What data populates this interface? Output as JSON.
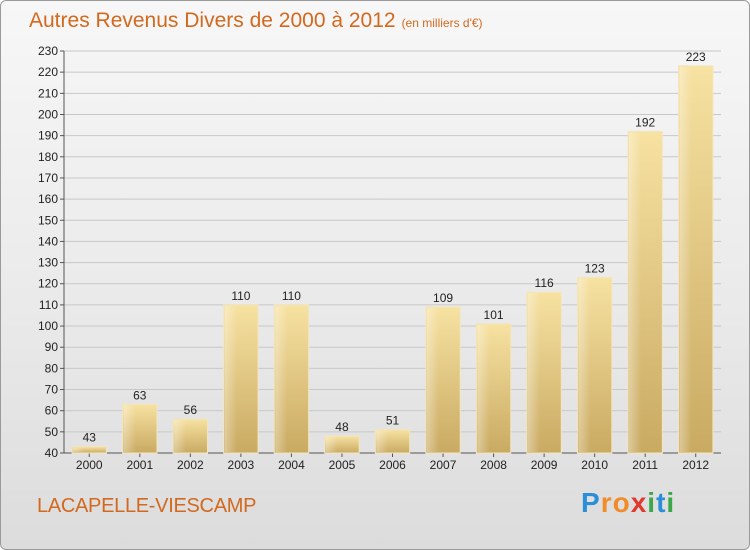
{
  "chart_data": {
    "type": "bar",
    "title": "Autres Revenus Divers de 2000 à 2012",
    "subtitle": "(en milliers d'€)",
    "categories": [
      "2000",
      "2001",
      "2002",
      "2003",
      "2004",
      "2005",
      "2006",
      "2007",
      "2008",
      "2009",
      "2010",
      "2011",
      "2012"
    ],
    "values": [
      43,
      63,
      56,
      110,
      110,
      48,
      51,
      109,
      101,
      116,
      123,
      192,
      223
    ],
    "ylim": [
      40,
      230
    ],
    "yticks": [
      40,
      50,
      60,
      70,
      80,
      90,
      100,
      110,
      120,
      130,
      140,
      150,
      160,
      170,
      180,
      190,
      200,
      210,
      220,
      230
    ],
    "grid": true,
    "colors": {
      "bar_light": "#f7e2a2",
      "bar_dark": "#c9aa62",
      "title": "#d2691e"
    }
  },
  "footer": {
    "place": "LACAPELLE-VIESCAMP",
    "logo": "Proxiti",
    "logo_letters": [
      {
        "ch": "P",
        "color": "#2a8fd8"
      },
      {
        "ch": "r",
        "color": "#f28c28"
      },
      {
        "ch": "o",
        "color": "#f28c28"
      },
      {
        "ch": "x",
        "color": "#e03a2f"
      },
      {
        "ch": "i",
        "color": "#3aa84a"
      },
      {
        "ch": "t",
        "color": "#2a8fd8"
      },
      {
        "ch": "i",
        "color": "#3aa84a"
      }
    ]
  }
}
